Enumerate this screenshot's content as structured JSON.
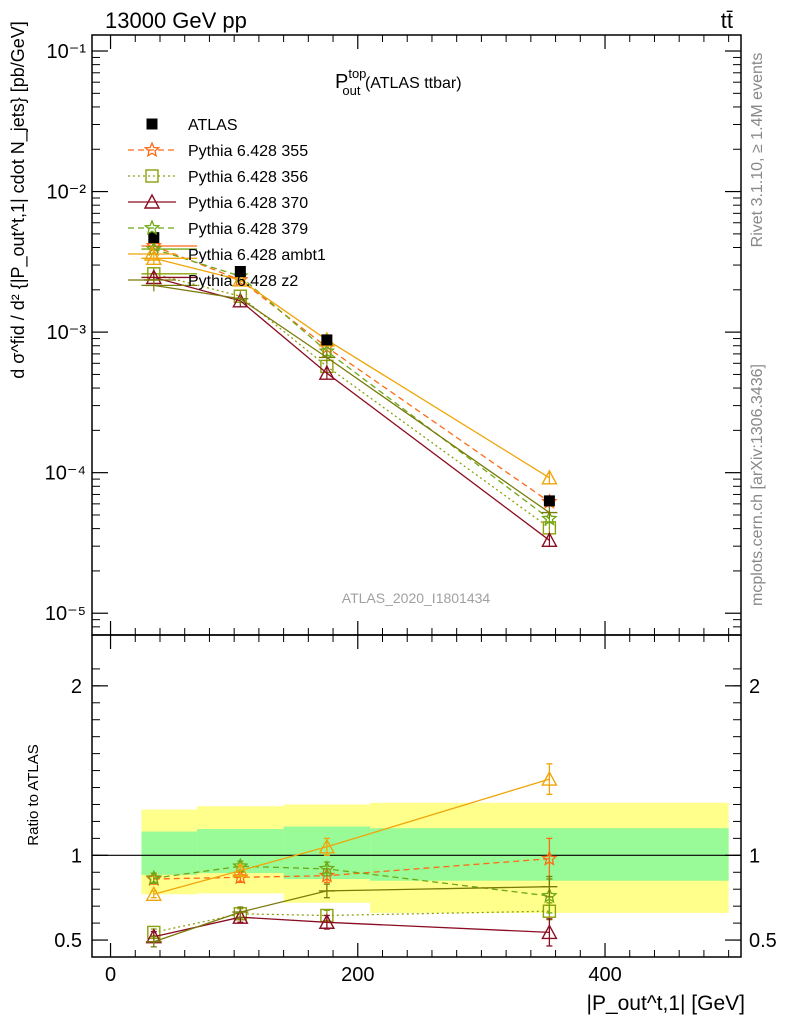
{
  "header": {
    "energy_label": "13000 GeV pp",
    "process_label": "tt̄"
  },
  "side_labels": {
    "rivet": "Rivet 3.1.10, ≥ 1.4M events",
    "mcplots": "mcplots.cern.ch [arXiv:1306.3436]"
  },
  "watermark": "ATLAS_2020_I1801434",
  "chart_data": {
    "type": "line",
    "title": "P_out^top (ATLAS ttbar)",
    "title_main": "P",
    "title_sup": "top",
    "title_sub": "out",
    "title_rest": " (ATLAS ttbar)",
    "xlabel": "|P_out^t,1| [GeV]",
    "ylabel": "d σ^fid / d² {|P_out^t,1| cdot N_jets} [pb/GeV]",
    "ratio_ylabel": "Ratio to ATLAS",
    "yscale": "log",
    "xlim": [
      -15,
      510
    ],
    "ylim": [
      7e-06,
      0.13
    ],
    "ratio_ylim": [
      0.4,
      2.3
    ],
    "x_ticks": [
      {
        "value": 0,
        "label": "0"
      },
      {
        "value": 200,
        "label": "200"
      },
      {
        "value": 400,
        "label": "400"
      }
    ],
    "y_ticks": [
      {
        "value": 0.1,
        "label": "10⁻¹"
      },
      {
        "value": 0.01,
        "label": "10⁻²"
      },
      {
        "value": 0.001,
        "label": "10⁻³"
      },
      {
        "value": 0.0001,
        "label": "10⁻⁴"
      },
      {
        "value": 1e-05,
        "label": "10⁻⁵"
      }
    ],
    "ratio_ticks": [
      {
        "value": 0.5,
        "label": "0.5"
      },
      {
        "value": 1,
        "label": "1"
      },
      {
        "value": 2,
        "label": "2"
      }
    ],
    "bins": [
      [
        25,
        70
      ],
      [
        70,
        140
      ],
      [
        140,
        210
      ],
      [
        210,
        500
      ]
    ],
    "x": [
      35,
      105,
      175,
      355
    ],
    "data": {
      "name": "ATLAS",
      "values": [
        0.0047,
        0.0027,
        0.00088,
        6.3e-05
      ],
      "band_inner": [
        [
          0.885,
          1.14
        ],
        [
          0.895,
          1.155
        ],
        [
          0.86,
          1.17
        ],
        [
          0.85,
          1.16
        ]
      ],
      "band_outer": [
        [
          0.77,
          1.27
        ],
        [
          0.775,
          1.29
        ],
        [
          0.72,
          1.3
        ],
        [
          0.66,
          1.31
        ]
      ]
    },
    "series": [
      {
        "name": "Pythia 6.428 355",
        "color": "#ff6a14",
        "marker": "star",
        "dash": "6,4",
        "values": [
          0.0041,
          0.00235,
          0.00078,
          6.2e-05
        ],
        "ratio": [
          0.86,
          0.87,
          0.88,
          0.98
        ],
        "ratio_err": [
          0.03,
          0.03,
          0.04,
          0.12
        ]
      },
      {
        "name": "Pythia 6.428 356",
        "color": "#8ca00a",
        "marker": "square",
        "dash": "2,3",
        "values": [
          0.0026,
          0.0018,
          0.00057,
          4.05e-05
        ],
        "ratio": [
          0.545,
          0.655,
          0.645,
          0.67
        ],
        "ratio_err": [
          0.02,
          0.03,
          0.03,
          0.05
        ]
      },
      {
        "name": "Pythia 6.428 370",
        "color": "#8b0d23",
        "marker": "triangle",
        "dash": "",
        "values": [
          0.00245,
          0.00167,
          0.00051,
          3.3e-05
        ],
        "ratio": [
          0.52,
          0.635,
          0.605,
          0.545
        ],
        "ratio_err": [
          0.03,
          0.03,
          0.04,
          0.08
        ]
      },
      {
        "name": "Pythia 6.428 379",
        "color": "#6ea814",
        "marker": "star",
        "dash": "6,4",
        "values": [
          0.0039,
          0.0025,
          0.00073,
          4.7e-05
        ],
        "ratio": [
          0.865,
          0.935,
          0.92,
          0.76
        ],
        "ratio_err": [
          0.03,
          0.03,
          0.04,
          0.1
        ]
      },
      {
        "name": "Pythia 6.428 ambt1",
        "color": "#f0a50a",
        "marker": "triangle",
        "dash": "",
        "values": [
          0.00335,
          0.00235,
          0.00088,
          9.2e-05
        ],
        "ratio": [
          0.77,
          0.91,
          1.05,
          1.45
        ],
        "ratio_err": [
          0.02,
          0.03,
          0.05,
          0.09
        ]
      },
      {
        "name": "Pythia 6.428 z2",
        "color": "#7a7a0a",
        "marker": "line",
        "dash": "",
        "values": [
          0.00215,
          0.00173,
          0.00066,
          5.2e-05
        ],
        "ratio": [
          0.49,
          0.665,
          0.79,
          0.815
        ],
        "ratio_err": [
          0.03,
          0.03,
          0.04,
          0.06
        ]
      }
    ]
  }
}
